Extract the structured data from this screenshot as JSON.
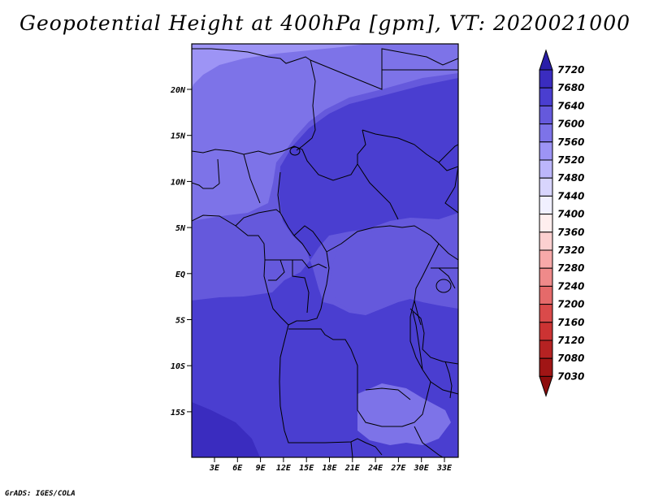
{
  "title": "Geopotential Height at 400hPa [gpm], VT: 2020021000",
  "credit": "GrADS: IGES/COLA",
  "map": {
    "lat_ticks": [
      "20N",
      "15N",
      "10N",
      "5N",
      "EQ",
      "5S",
      "10S",
      "15S"
    ],
    "lon_ticks": [
      "3E",
      "6E",
      "9E",
      "12E",
      "15E",
      "18E",
      "21E",
      "24E",
      "27E",
      "30E",
      "33E"
    ],
    "fill_colors": {
      "far_north_7520": "#9d94f5",
      "north_7560": "#7d73e8",
      "mid_7600": "#6559dc",
      "core_7640": "#4a3ed0",
      "south_7680": "#3a2cbf"
    }
  },
  "colorbar": {
    "levels": [
      "7720",
      "7680",
      "7640",
      "7600",
      "7560",
      "7520",
      "7480",
      "7440",
      "7400",
      "7360",
      "7320",
      "7280",
      "7240",
      "7200",
      "7160",
      "7120",
      "7080",
      "7030"
    ],
    "colors": [
      "#2a1ea8",
      "#3a2cbf",
      "#4a3ed0",
      "#6559dc",
      "#7d73e8",
      "#9d94f5",
      "#bcb6fb",
      "#d8d5fd",
      "#f1f0ff",
      "#ffeeee",
      "#fcd0d0",
      "#f7a9a9",
      "#ef8a8a",
      "#e56a6a",
      "#da4a4a",
      "#cc3333",
      "#b52222",
      "#a01515",
      "#8d0d0d"
    ]
  }
}
